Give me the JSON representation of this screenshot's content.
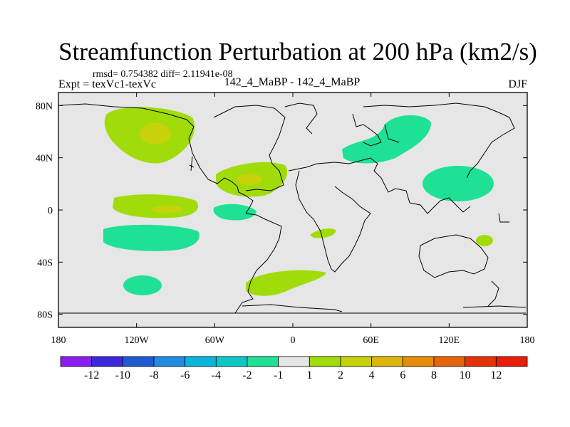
{
  "title": "Streamfunction Perturbation at 200 hPa (km2/s)",
  "stats_line": "rmsd= 0.754382 diff= 2.11941e-08",
  "experiment_label": "Expt = texVc1-texVc",
  "run_label": "142_4_MaBP - 142_4_MaBP",
  "season_label": "DJF",
  "x_ticks": [
    "180",
    "120W",
    "60W",
    "0",
    "60E",
    "120E",
    "180"
  ],
  "x_tick_values": [
    -180,
    -120,
    -60,
    0,
    60,
    120,
    180
  ],
  "y_ticks": [
    "80N",
    "40N",
    "0",
    "40S",
    "80S"
  ],
  "y_tick_values": [
    80,
    40,
    0,
    -40,
    -80
  ],
  "lon_range": [
    -180,
    180
  ],
  "lat_range": [
    -90,
    90
  ],
  "colorbar": {
    "colors": [
      "#8a1ef0",
      "#3c28dc",
      "#1e5ad2",
      "#1e8ce0",
      "#0ab4dc",
      "#0ac8c8",
      "#1ee196",
      "#e6e6e6",
      "#a0dc0a",
      "#c8d20a",
      "#dcb40a",
      "#e68c0a",
      "#e6640a",
      "#e6320a",
      "#e61e0a"
    ],
    "labels": [
      "-12",
      "-10",
      "-8",
      "-6",
      "-4",
      "-2",
      "-1",
      "1",
      "2",
      "4",
      "6",
      "8",
      "10",
      "12"
    ]
  },
  "field_colors": {
    "background": "#e6e6e6",
    "green": "#a0dc0a",
    "yellow": "#c8d20a",
    "cyan": "#1ee196"
  }
}
